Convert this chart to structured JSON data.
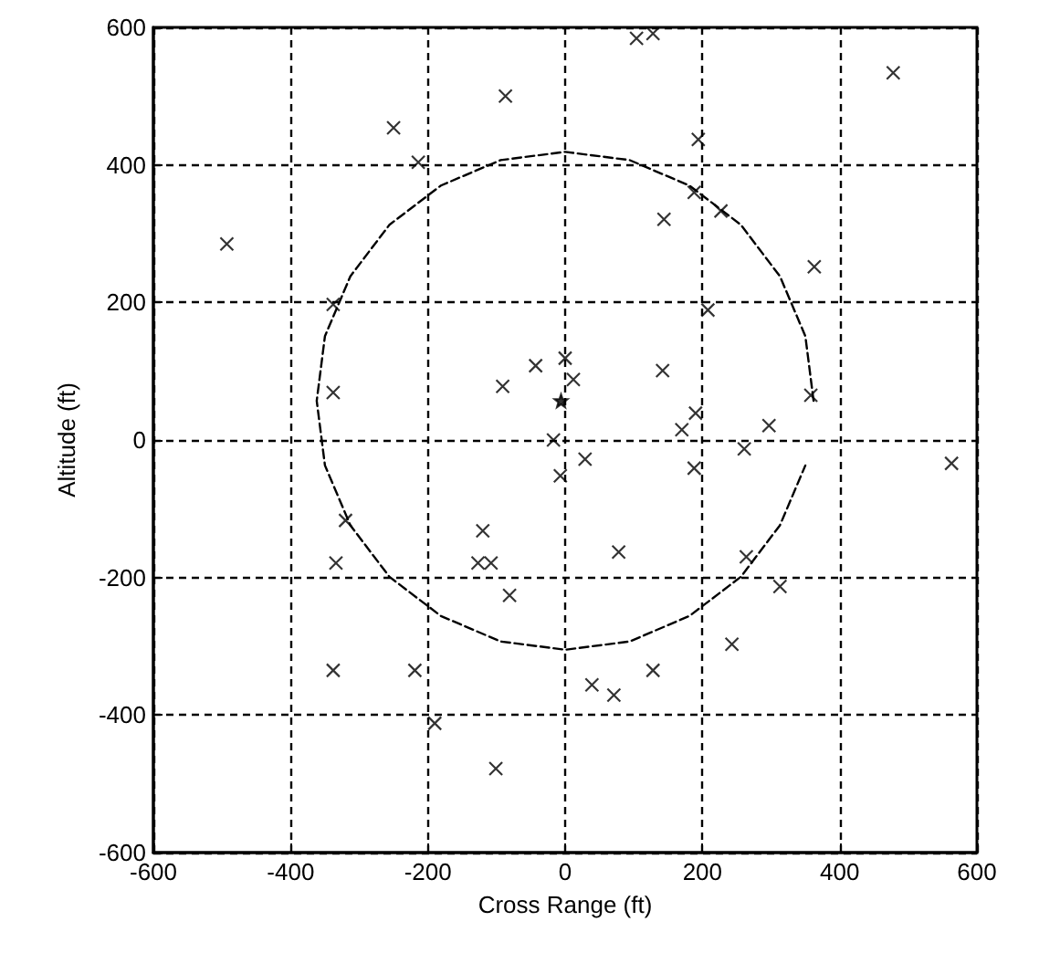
{
  "chart_data": {
    "type": "scatter",
    "xlabel": "Cross Range (ft)",
    "ylabel": "Altitude (ft)",
    "xlim": [
      -600,
      600
    ],
    "ylim": [
      -600,
      600
    ],
    "xticks": [
      -600,
      -400,
      -200,
      0,
      200,
      400,
      600
    ],
    "yticks": [
      -600,
      -400,
      -200,
      0,
      200,
      400,
      600
    ],
    "grid": true,
    "series": [
      {
        "marker": "cross",
        "color": "#000000",
        "x": [
          -87,
          -250,
          -214,
          -493,
          -338,
          -338,
          -91,
          -43,
          0,
          104,
          128,
          478,
          194,
          188,
          144,
          227,
          363,
          208,
          142,
          12,
          190,
          170,
          297,
          358,
          29,
          -7,
          188,
          261,
          563,
          78,
          264,
          313,
          243,
          128,
          39,
          71,
          -17,
          -320,
          -334,
          -120,
          -127,
          -108,
          -81,
          -338,
          -219,
          -190,
          -101
        ],
        "values": [
          500,
          454,
          404,
          285,
          197,
          69,
          78,
          108,
          119,
          584,
          591,
          534,
          437,
          360,
          321,
          333,
          252,
          189,
          101,
          88,
          39,
          15,
          21,
          65,
          -28,
          -52,
          -41,
          -13,
          -34,
          -163,
          -170,
          -213,
          -297,
          -335,
          -356,
          -371,
          0,
          -117,
          -179,
          -132,
          -179,
          -179,
          -226,
          -335,
          -335,
          -412,
          -478
        ]
      },
      {
        "marker": "star",
        "color": "#000000",
        "x": [
          -6
        ],
        "values": [
          57
        ]
      },
      {
        "type": "line",
        "marker": "none",
        "line_style": "dashed",
        "color": "#000000",
        "x": [
          362,
          350,
          313,
          256,
          181,
          94,
          0,
          -94,
          -181,
          -256,
          -313,
          -350,
          -362,
          -350,
          -313,
          -256,
          -181,
          -94,
          0,
          94,
          181,
          256,
          313,
          350
        ],
        "values": [
          57,
          151,
          238,
          313,
          370,
          407,
          419,
          407,
          370,
          313,
          238,
          151,
          57,
          -37,
          -124,
          -199,
          -256,
          -293,
          -305,
          -293,
          -256,
          -199,
          -124,
          -37
        ]
      }
    ]
  }
}
